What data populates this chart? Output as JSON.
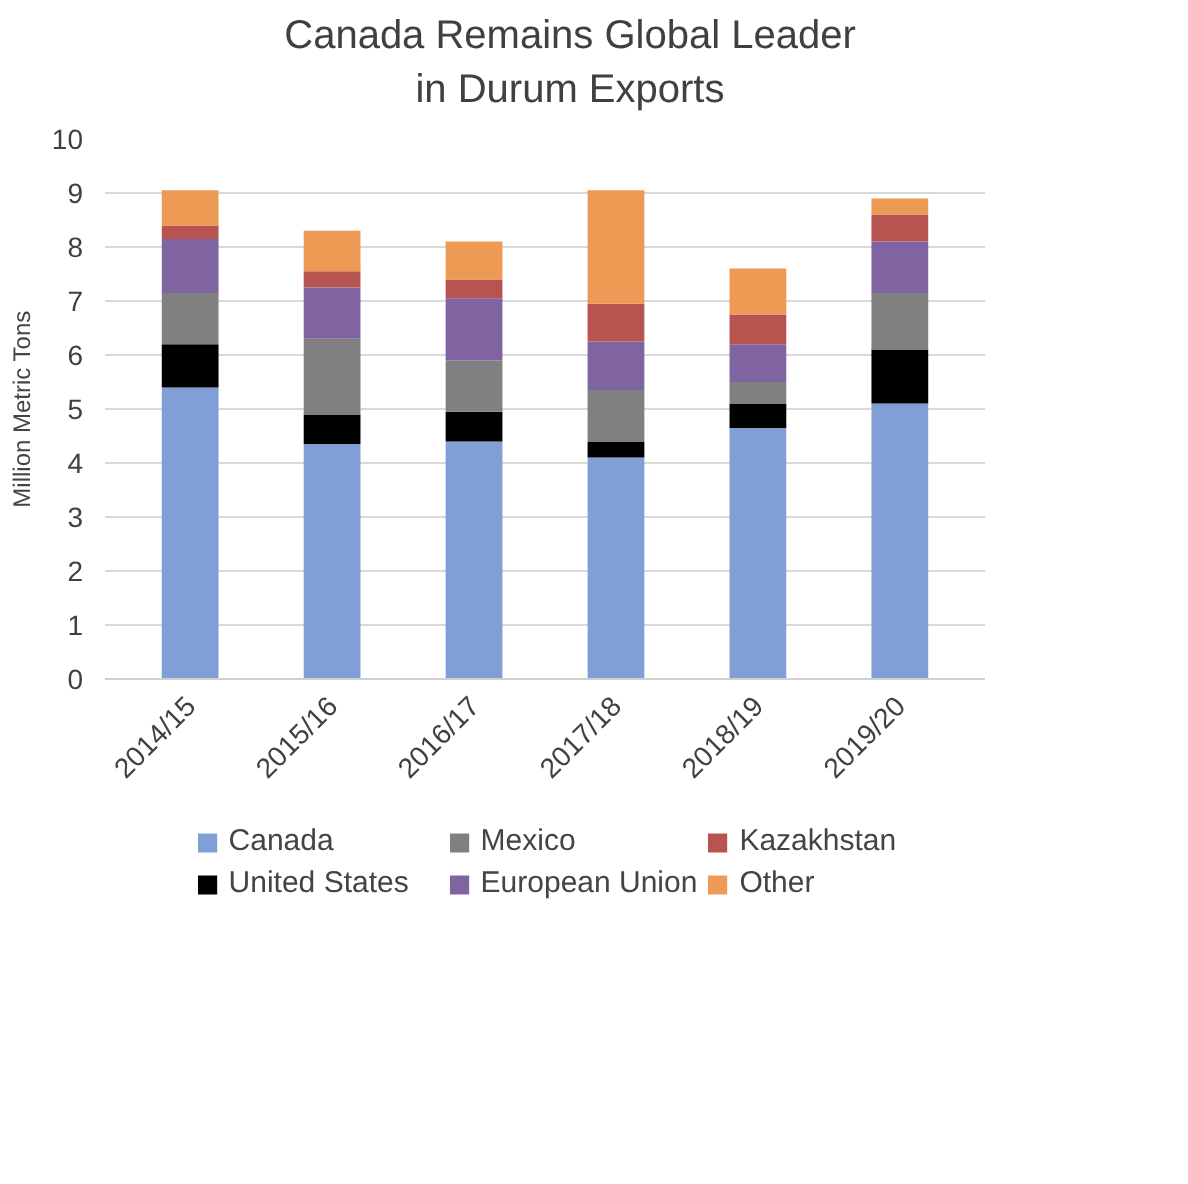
{
  "chart_data": {
    "type": "bar",
    "stacked": true,
    "title": "Canada Remains Global Leader\nin Durum Exports",
    "ylabel": "Million Metric Tons",
    "categories": [
      "2014/15",
      "2015/16",
      "2016/17",
      "2017/18",
      "2018/19",
      "2019/20"
    ],
    "series": [
      {
        "name": "Canada",
        "color": "#7f9fd6",
        "values": [
          5.4,
          4.35,
          4.4,
          4.1,
          4.65,
          5.1
        ]
      },
      {
        "name": "United States",
        "color": "#000000",
        "values": [
          0.8,
          0.55,
          0.55,
          0.3,
          0.45,
          1.0
        ]
      },
      {
        "name": "Mexico",
        "color": "#808080",
        "values": [
          0.95,
          1.4,
          0.95,
          0.95,
          0.4,
          1.05
        ]
      },
      {
        "name": "European Union",
        "color": "#8064a2",
        "values": [
          1.0,
          0.95,
          1.15,
          0.9,
          0.7,
          0.95
        ]
      },
      {
        "name": "Kazakhstan",
        "color": "#b85450",
        "values": [
          0.25,
          0.3,
          0.35,
          0.7,
          0.55,
          0.5
        ]
      },
      {
        "name": "Other",
        "color": "#ed9a54",
        "values": [
          0.65,
          0.75,
          0.7,
          2.1,
          0.85,
          0.3
        ]
      }
    ],
    "ylim": [
      0,
      10
    ],
    "yticks": [
      0,
      1,
      2,
      3,
      4,
      5,
      6,
      7,
      8,
      9,
      10
    ],
    "grid": "y",
    "legend": "bottom"
  }
}
